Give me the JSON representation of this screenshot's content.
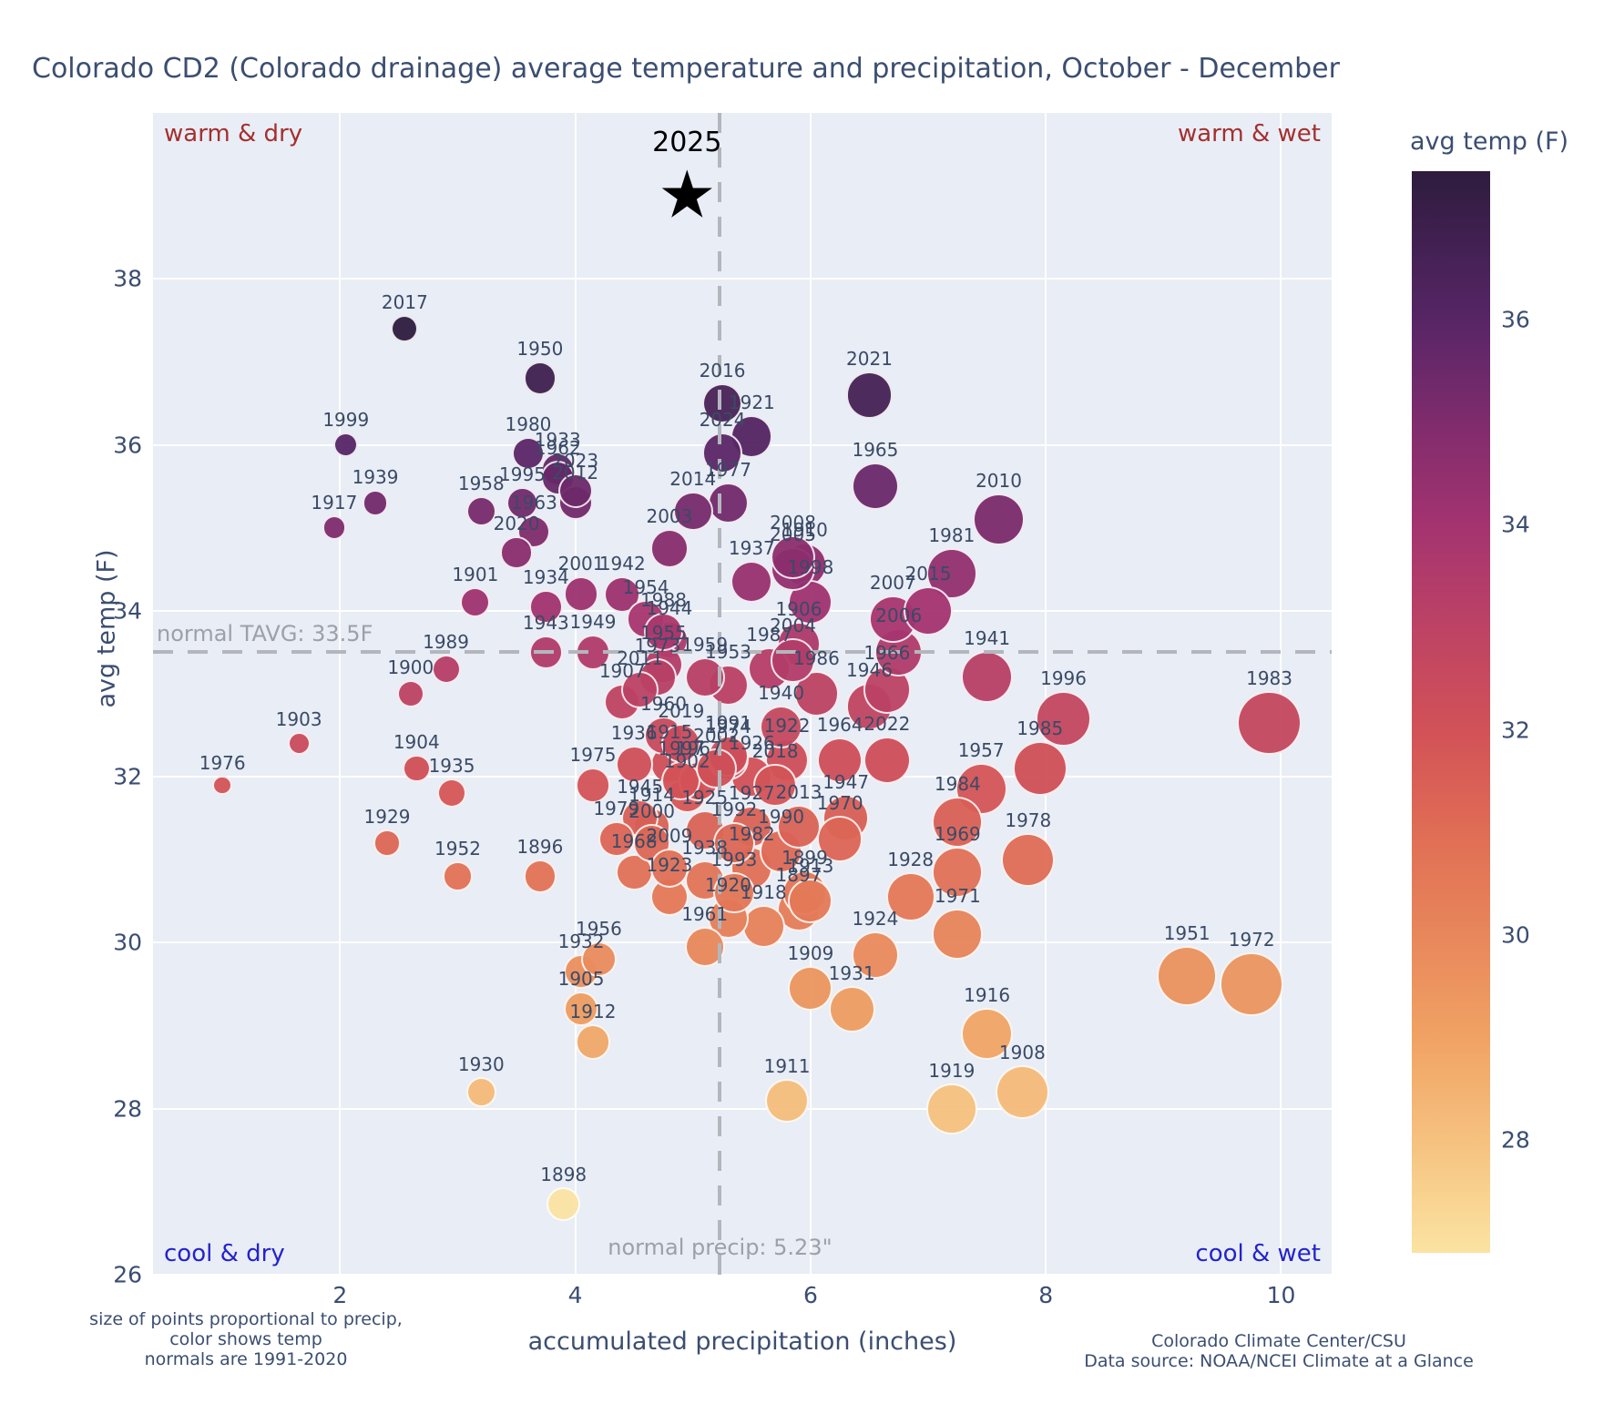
{
  "title": "Colorado CD2 (Colorado drainage) average temperature and precipitation, October - December",
  "axes": {
    "xlabel": "accumulated precipitation (inches)",
    "ylabel": "avg temp (F)",
    "xticks": [
      2,
      4,
      6,
      8,
      10
    ],
    "yticks": [
      26,
      28,
      30,
      32,
      34,
      36,
      38
    ],
    "xlim": [
      0.41,
      10.43
    ],
    "ylim": [
      26.0,
      40.0
    ]
  },
  "corner_labels": {
    "top_left": "warm & dry",
    "top_right": "warm & wet",
    "bottom_left": "cool & dry",
    "bottom_right": "cool & wet"
  },
  "annotations": {
    "normal_tavg_label": "normal TAVG: 33.5F",
    "normal_precip_label": "normal precip: 5.23\""
  },
  "colorbar": {
    "title": "avg temp (F)",
    "ticks": [
      28,
      30,
      32,
      34,
      36
    ],
    "min": 26.9,
    "max": 37.45
  },
  "footnotes": {
    "left_lines": [
      "size of points proportional to precip,",
      "color shows temp",
      "normals are 1991-2020"
    ],
    "right_lines": [
      "Colorado Climate Center/CSU",
      "Data source: NOAA/NCEI Climate at a Glance"
    ]
  },
  "colors": {
    "plot_bg": "#e9edf5",
    "gridline": "#ffffff",
    "warm_label": "#a33030",
    "cool_label": "#2323cc",
    "year_label": "#3a4a66",
    "axis_text": "#3b4e71",
    "normal_line": "#b3b7bd",
    "colormap_stops": [
      [
        26.9,
        "#fbe3a2"
      ],
      [
        28,
        "#f6c17f"
      ],
      [
        29,
        "#f0a263"
      ],
      [
        30,
        "#e8875b"
      ],
      [
        31,
        "#e06d55"
      ],
      [
        32,
        "#d25157"
      ],
      [
        33,
        "#bd4364"
      ],
      [
        34,
        "#a43370"
      ],
      [
        35,
        "#7f2c6d"
      ],
      [
        36,
        "#572566"
      ],
      [
        37.45,
        "#2e1c3e"
      ]
    ]
  },
  "chart_data": {
    "type": "scatter",
    "title": "Colorado CD2 (Colorado drainage) average temperature and precipitation, October - December",
    "xlabel": "accumulated precipitation (inches)",
    "ylabel": "avg temp (F)",
    "grid": true,
    "normal_tavg": 33.5,
    "normal_precip": 5.23,
    "size_rule": "radius_px = 8 + 2.75 * precip",
    "star_point": {
      "year": 2025,
      "precip": 4.95,
      "temp": 39.0
    },
    "points": [
      {
        "year": 1896,
        "precip": 3.7,
        "temp": 30.8
      },
      {
        "year": 1897,
        "precip": 5.9,
        "temp": 30.4
      },
      {
        "year": 1898,
        "precip": 3.9,
        "temp": 26.85
      },
      {
        "year": 1899,
        "precip": 5.95,
        "temp": 30.6
      },
      {
        "year": 1900,
        "precip": 2.6,
        "temp": 33.0
      },
      {
        "year": 1901,
        "precip": 3.15,
        "temp": 34.1
      },
      {
        "year": 1902,
        "precip": 4.95,
        "temp": 31.8
      },
      {
        "year": 1903,
        "precip": 1.65,
        "temp": 32.4
      },
      {
        "year": 1904,
        "precip": 2.65,
        "temp": 32.1
      },
      {
        "year": 1905,
        "precip": 4.05,
        "temp": 29.2
      },
      {
        "year": 1906,
        "precip": 5.9,
        "temp": 33.6
      },
      {
        "year": 1907,
        "precip": 4.4,
        "temp": 32.9
      },
      {
        "year": 1908,
        "precip": 7.8,
        "temp": 28.2
      },
      {
        "year": 1909,
        "precip": 6.0,
        "temp": 29.45
      },
      {
        "year": 1910,
        "precip": 5.95,
        "temp": 34.55
      },
      {
        "year": 1911,
        "precip": 5.8,
        "temp": 28.1
      },
      {
        "year": 1912,
        "precip": 4.15,
        "temp": 28.8
      },
      {
        "year": 1913,
        "precip": 6.0,
        "temp": 30.5
      },
      {
        "year": 1914,
        "precip": 4.65,
        "temp": 31.4
      },
      {
        "year": 1915,
        "precip": 4.8,
        "temp": 32.15
      },
      {
        "year": 1916,
        "precip": 7.5,
        "temp": 28.9
      },
      {
        "year": 1917,
        "precip": 1.95,
        "temp": 35.0
      },
      {
        "year": 1918,
        "precip": 5.6,
        "temp": 30.2
      },
      {
        "year": 1919,
        "precip": 7.2,
        "temp": 28.0
      },
      {
        "year": 1920,
        "precip": 5.3,
        "temp": 30.3
      },
      {
        "year": 1921,
        "precip": 5.5,
        "temp": 36.1
      },
      {
        "year": 1922,
        "precip": 5.8,
        "temp": 32.2
      },
      {
        "year": 1923,
        "precip": 4.8,
        "temp": 30.55
      },
      {
        "year": 1924,
        "precip": 6.55,
        "temp": 29.85
      },
      {
        "year": 1925,
        "precip": 5.1,
        "temp": 31.35
      },
      {
        "year": 1926,
        "precip": 5.5,
        "temp": 32.0
      },
      {
        "year": 1927,
        "precip": 5.5,
        "temp": 31.4
      },
      {
        "year": 1928,
        "precip": 6.85,
        "temp": 30.55
      },
      {
        "year": 1929,
        "precip": 2.4,
        "temp": 31.2
      },
      {
        "year": 1930,
        "precip": 3.2,
        "temp": 28.2
      },
      {
        "year": 1931,
        "precip": 6.35,
        "temp": 29.2
      },
      {
        "year": 1932,
        "precip": 4.05,
        "temp": 29.65
      },
      {
        "year": 1933,
        "precip": 3.85,
        "temp": 35.7
      },
      {
        "year": 1934,
        "precip": 3.75,
        "temp": 34.05
      },
      {
        "year": 1935,
        "precip": 2.95,
        "temp": 31.8
      },
      {
        "year": 1936,
        "precip": 4.5,
        "temp": 32.15
      },
      {
        "year": 1937,
        "precip": 5.5,
        "temp": 34.35
      },
      {
        "year": 1938,
        "precip": 5.1,
        "temp": 30.75
      },
      {
        "year": 1939,
        "precip": 2.3,
        "temp": 35.3
      },
      {
        "year": 1940,
        "precip": 5.75,
        "temp": 32.6
      },
      {
        "year": 1941,
        "precip": 7.5,
        "temp": 33.2
      },
      {
        "year": 1942,
        "precip": 4.4,
        "temp": 34.2
      },
      {
        "year": 1943,
        "precip": 3.75,
        "temp": 33.5
      },
      {
        "year": 1944,
        "precip": 4.8,
        "temp": 33.65
      },
      {
        "year": 1945,
        "precip": 4.55,
        "temp": 31.5
      },
      {
        "year": 1946,
        "precip": 6.5,
        "temp": 32.85
      },
      {
        "year": 1947,
        "precip": 6.3,
        "temp": 31.5
      },
      {
        "year": 1949,
        "precip": 4.15,
        "temp": 33.5
      },
      {
        "year": 1950,
        "precip": 3.7,
        "temp": 36.8
      },
      {
        "year": 1951,
        "precip": 9.2,
        "temp": 29.6
      },
      {
        "year": 1952,
        "precip": 3.0,
        "temp": 30.8
      },
      {
        "year": 1953,
        "precip": 5.3,
        "temp": 33.1
      },
      {
        "year": 1954,
        "precip": 4.6,
        "temp": 33.9
      },
      {
        "year": 1955,
        "precip": 4.75,
        "temp": 33.35
      },
      {
        "year": 1956,
        "precip": 4.2,
        "temp": 29.8
      },
      {
        "year": 1957,
        "precip": 7.45,
        "temp": 31.85
      },
      {
        "year": 1958,
        "precip": 3.2,
        "temp": 35.2
      },
      {
        "year": 1959,
        "precip": 5.1,
        "temp": 33.2
      },
      {
        "year": 1960,
        "precip": 4.75,
        "temp": 32.5
      },
      {
        "year": 1961,
        "precip": 5.1,
        "temp": 29.95
      },
      {
        "year": 1962,
        "precip": 3.85,
        "temp": 35.6
      },
      {
        "year": 1963,
        "precip": 3.65,
        "temp": 34.95
      },
      {
        "year": 1964,
        "precip": 6.25,
        "temp": 32.2
      },
      {
        "year": 1965,
        "precip": 6.55,
        "temp": 35.5
      },
      {
        "year": 1966,
        "precip": 6.65,
        "temp": 33.05
      },
      {
        "year": 1967,
        "precip": 5.05,
        "temp": 31.95
      },
      {
        "year": 1968,
        "precip": 4.5,
        "temp": 30.85
      },
      {
        "year": 1969,
        "precip": 7.25,
        "temp": 30.85
      },
      {
        "year": 1970,
        "precip": 6.25,
        "temp": 31.25
      },
      {
        "year": 1971,
        "precip": 7.25,
        "temp": 30.1
      },
      {
        "year": 1972,
        "precip": 9.75,
        "temp": 29.5
      },
      {
        "year": 1973,
        "precip": 4.7,
        "temp": 33.2
      },
      {
        "year": 1974,
        "precip": 5.3,
        "temp": 32.2
      },
      {
        "year": 1975,
        "precip": 4.15,
        "temp": 31.9
      },
      {
        "year": 1976,
        "precip": 1.0,
        "temp": 31.9
      },
      {
        "year": 1977,
        "precip": 5.3,
        "temp": 35.3
      },
      {
        "year": 1978,
        "precip": 7.85,
        "temp": 31.0
      },
      {
        "year": 1979,
        "precip": 4.35,
        "temp": 31.25
      },
      {
        "year": 1980,
        "precip": 3.6,
        "temp": 35.9
      },
      {
        "year": 1981,
        "precip": 7.2,
        "temp": 34.45
      },
      {
        "year": 1982,
        "precip": 5.5,
        "temp": 30.9
      },
      {
        "year": 1983,
        "precip": 9.9,
        "temp": 32.65
      },
      {
        "year": 1984,
        "precip": 7.25,
        "temp": 31.45
      },
      {
        "year": 1985,
        "precip": 7.95,
        "temp": 32.1
      },
      {
        "year": 1986,
        "precip": 6.05,
        "temp": 33.0
      },
      {
        "year": 1987,
        "precip": 5.65,
        "temp": 33.3
      },
      {
        "year": 1988,
        "precip": 4.75,
        "temp": 33.75
      },
      {
        "year": 1989,
        "precip": 2.9,
        "temp": 33.3
      },
      {
        "year": 1990,
        "precip": 5.75,
        "temp": 31.1
      },
      {
        "year": 1991,
        "precip": 5.3,
        "temp": 32.25
      },
      {
        "year": 1992,
        "precip": 5.35,
        "temp": 31.2
      },
      {
        "year": 1993,
        "precip": 5.35,
        "temp": 30.6
      },
      {
        "year": 1995,
        "precip": 3.55,
        "temp": 35.3
      },
      {
        "year": 1996,
        "precip": 8.15,
        "temp": 32.7
      },
      {
        "year": 1997,
        "precip": 4.9,
        "temp": 31.95
      },
      {
        "year": 1998,
        "precip": 6.0,
        "temp": 34.1
      },
      {
        "year": 1999,
        "precip": 2.05,
        "temp": 36.0
      },
      {
        "year": 2000,
        "precip": 4.65,
        "temp": 31.2
      },
      {
        "year": 2001,
        "precip": 4.05,
        "temp": 34.2
      },
      {
        "year": 2002,
        "precip": 5.2,
        "temp": 32.1
      },
      {
        "year": 2003,
        "precip": 4.8,
        "temp": 34.75
      },
      {
        "year": 2004,
        "precip": 5.85,
        "temp": 33.4
      },
      {
        "year": 2005,
        "precip": 5.85,
        "temp": 34.5
      },
      {
        "year": 2006,
        "precip": 6.75,
        "temp": 33.5
      },
      {
        "year": 2007,
        "precip": 6.7,
        "temp": 33.9
      },
      {
        "year": 2008,
        "precip": 5.85,
        "temp": 34.65
      },
      {
        "year": 2009,
        "precip": 4.8,
        "temp": 30.9
      },
      {
        "year": 2010,
        "precip": 7.6,
        "temp": 35.1
      },
      {
        "year": 2011,
        "precip": 4.55,
        "temp": 33.05
      },
      {
        "year": 2012,
        "precip": 4.0,
        "temp": 35.3
      },
      {
        "year": 2013,
        "precip": 5.9,
        "temp": 31.4
      },
      {
        "year": 2014,
        "precip": 5.0,
        "temp": 35.2
      },
      {
        "year": 2015,
        "precip": 7.0,
        "temp": 34.0
      },
      {
        "year": 2016,
        "precip": 5.25,
        "temp": 36.5
      },
      {
        "year": 2017,
        "precip": 2.55,
        "temp": 37.4
      },
      {
        "year": 2018,
        "precip": 5.7,
        "temp": 31.9
      },
      {
        "year": 2019,
        "precip": 4.9,
        "temp": 32.4
      },
      {
        "year": 2020,
        "precip": 3.5,
        "temp": 34.7
      },
      {
        "year": 2021,
        "precip": 6.5,
        "temp": 36.6
      },
      {
        "year": 2022,
        "precip": 6.65,
        "temp": 32.2
      },
      {
        "year": 2023,
        "precip": 4.0,
        "temp": 35.45
      },
      {
        "year": 2024,
        "precip": 5.25,
        "temp": 35.9
      }
    ]
  }
}
